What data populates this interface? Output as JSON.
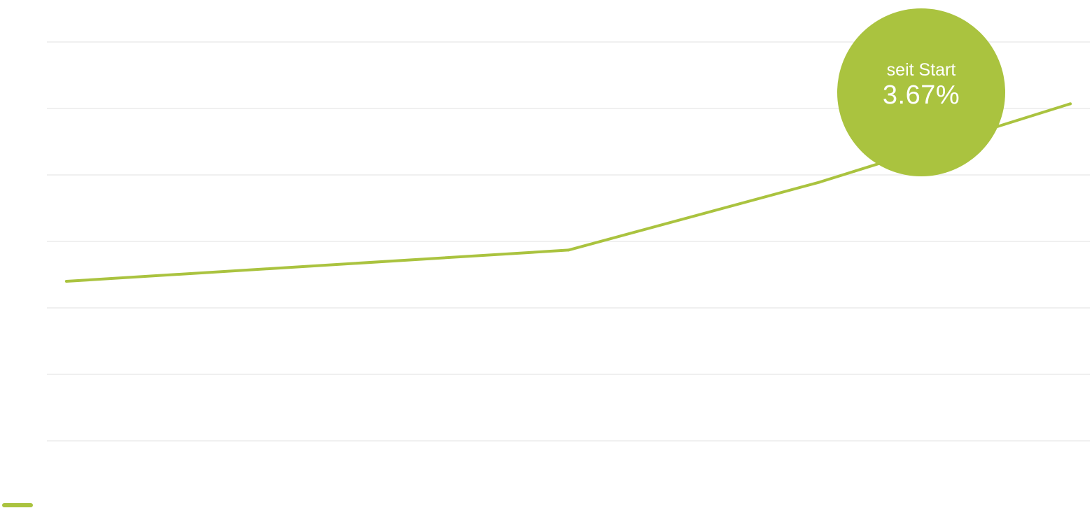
{
  "colors": {
    "accent": "#aac33f",
    "gridline": "#ececec",
    "background": "#ffffff"
  },
  "badge": {
    "label": "seit Start",
    "value": "3.67%"
  },
  "chart_data": {
    "type": "line",
    "x": [
      0,
      1,
      1.5,
      2
    ],
    "series": [
      {
        "values": [
          1.0,
          1.47,
          2.49,
          3.67
        ]
      }
    ],
    "ylim": [
      -1.4,
      4.6
    ],
    "grid": true,
    "gridline_count": 7,
    "legend": "bottom-left",
    "annotation": {
      "label": "seit Start",
      "value": "3.67%"
    }
  }
}
